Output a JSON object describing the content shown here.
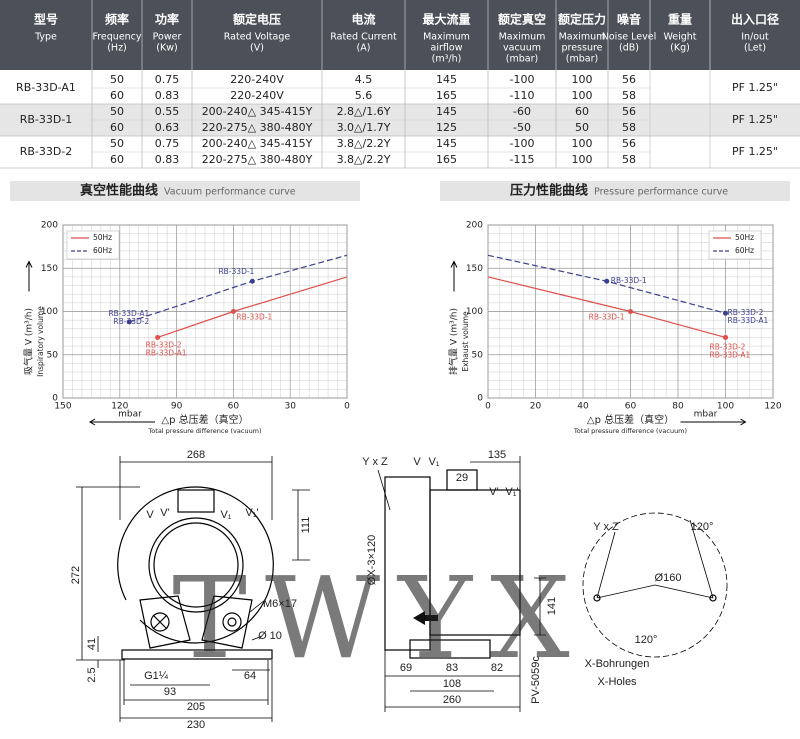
{
  "table": {
    "columns": [
      [
        "型号",
        "Type"
      ],
      [
        "频率",
        "Frequency",
        "(Hz)"
      ],
      [
        "功率",
        "Power",
        "(Kw)"
      ],
      [
        "额定电压",
        "Rated Voltage",
        "(V)"
      ],
      [
        "电流",
        "Rated Current",
        "(A)"
      ],
      [
        "最大流量",
        "Maximum",
        "airflow",
        "(m³/h)"
      ],
      [
        "额定真空",
        "Maximum",
        "vacuum",
        "(mbar)"
      ],
      [
        "额定压力",
        "Maximum",
        "pressure",
        "(mbar)"
      ],
      [
        "噪音",
        "Noise Level",
        "(dB)"
      ],
      [
        "重量",
        "Weight",
        "(Kg)"
      ],
      [
        "出入口径",
        "In/out",
        "(Let)"
      ]
    ],
    "groups": [
      {
        "type": "RB-33D-A1",
        "port": "PF 1.25\"",
        "rows": [
          [
            50,
            0.75,
            "220-240V",
            4.5,
            145,
            -100,
            100,
            56
          ],
          [
            60,
            0.83,
            "220-240V",
            5.6,
            165,
            -110,
            100,
            58
          ]
        ]
      },
      {
        "type": "RB-33D-1",
        "port": "PF 1.25\"",
        "rows": [
          [
            50,
            0.55,
            "200-240△ 345-415Y",
            "2.8△/1.6Y",
            145,
            -60,
            60,
            56
          ],
          [
            60,
            0.63,
            "220-275△ 380-480Y",
            "3.0△/1.7Y",
            125,
            -50,
            50,
            58
          ]
        ]
      },
      {
        "type": "RB-33D-2",
        "port": "PF 1.25\"",
        "rows": [
          [
            50,
            0.75,
            "200-240△ 345-415Y",
            "3.8△/2.2Y",
            145,
            -100,
            100,
            56
          ],
          [
            60,
            0.83,
            "220-275△ 380-480Y",
            "3.8△/2.2Y",
            165,
            -115,
            100,
            58
          ]
        ]
      }
    ]
  },
  "chart_data": [
    {
      "type": "line",
      "title": "真空性能曲线",
      "subtitle": "Vacuum performance curve",
      "y_label": "吸气量 V (m³/h)",
      "y_label_en": "Inspiratory volume",
      "x_label": "△p 总压差（真空）",
      "x_label_en": "Total pressure difference (vacuum)",
      "x_unit": "mbar",
      "xlim": [
        150,
        0
      ],
      "xticks": [
        150,
        120,
        90,
        60,
        30,
        0
      ],
      "ylim": [
        0,
        200
      ],
      "yticks": [
        0,
        50,
        100,
        150,
        200
      ],
      "minor_xstep": 5,
      "minor_ystep": 10,
      "legend": "upper left",
      "series": [
        {
          "name": "50Hz",
          "color": "#e0504a",
          "x": [
            100,
            60,
            0
          ],
          "values": [
            70,
            100,
            140
          ],
          "point_labels": [
            [
              "RB-33D-2",
              "RB-33D-A1"
            ],
            [
              "RB-33D-1"
            ],
            null
          ]
        },
        {
          "name": "60Hz",
          "color": "#3b3f8f",
          "dashed": true,
          "x": [
            115,
            50,
            0
          ],
          "values": [
            88,
            135,
            165
          ],
          "point_labels": [
            [
              "RB-33D-A1",
              "RB-33D-2"
            ],
            [
              "RB-33D-1"
            ],
            null
          ]
        }
      ]
    },
    {
      "type": "line",
      "title": "压力性能曲线",
      "subtitle": "Pressure performance curve",
      "y_label": "排气量 V (m³/h)",
      "y_label_en": "Exhaust volume",
      "x_label": "△p 总压差（真空）",
      "x_label_en": "Total pressure difference (vacuum)",
      "x_unit": "mbar",
      "xlim": [
        0,
        120
      ],
      "xticks": [
        0,
        20,
        40,
        60,
        80,
        100,
        120
      ],
      "ylim": [
        0,
        200
      ],
      "yticks": [
        0,
        50,
        100,
        150,
        200
      ],
      "minor_xstep": 5,
      "minor_ystep": 10,
      "legend": "upper right",
      "series": [
        {
          "name": "50Hz",
          "color": "#e0504a",
          "x": [
            0,
            60,
            100
          ],
          "values": [
            140,
            100,
            70
          ],
          "point_labels": [
            null,
            [
              "RB-33D-1"
            ],
            [
              "RB-33D-2",
              "RB-33D-A1"
            ]
          ]
        },
        {
          "name": "60Hz",
          "color": "#3b3f8f",
          "dashed": true,
          "x": [
            0,
            50,
            100
          ],
          "values": [
            165,
            135,
            98
          ],
          "point_labels": [
            null,
            [
              "RB-33D-1"
            ],
            [
              "RB-33D-2",
              "RB-33D-A1"
            ]
          ]
        }
      ]
    }
  ],
  "drawing": {
    "watermark": "TWYX",
    "front": [
      "268",
      "272",
      "111",
      "41",
      "2.5",
      "93",
      "64",
      "205",
      "230",
      "M6×17",
      "Ø 10",
      "G1¼",
      "V",
      "V'",
      "V₁",
      "V₁'"
    ],
    "side": [
      "Y x Z",
      "V",
      "V₁",
      "135",
      "29",
      "V'",
      "V₁'",
      "ØX-3×120",
      "141",
      "69",
      "83",
      "82",
      "108",
      "260",
      "PV-5059c"
    ],
    "flange": [
      "Y x Z",
      "120°",
      "Ø160",
      "120°",
      "X-Bohrungen",
      "X-Holes"
    ]
  }
}
